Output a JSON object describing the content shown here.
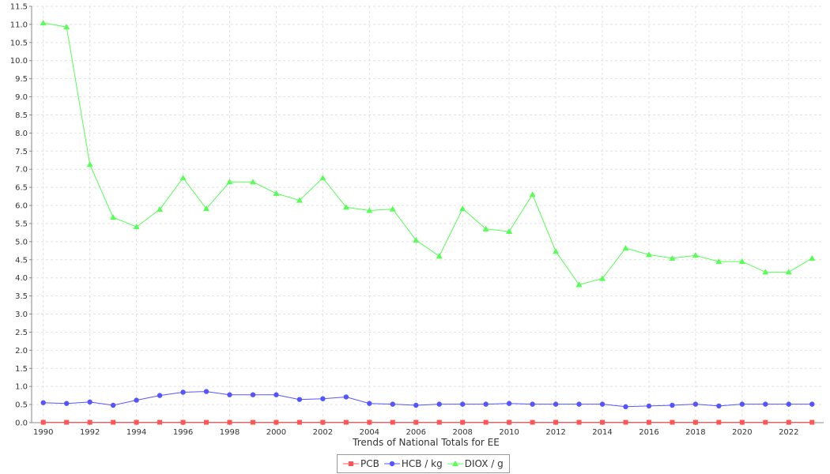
{
  "chart_data": {
    "type": "line",
    "title": "",
    "xlabel": "Trends of National Totals for EE",
    "ylabel": "",
    "x": [
      1990,
      1991,
      1992,
      1993,
      1994,
      1995,
      1996,
      1997,
      1998,
      1999,
      2000,
      2001,
      2002,
      2003,
      2004,
      2005,
      2006,
      2007,
      2008,
      2009,
      2010,
      2011,
      2012,
      2013,
      2014,
      2015,
      2016,
      2017,
      2018,
      2019,
      2020,
      2021,
      2022,
      2023
    ],
    "x_ticks": [
      "1990",
      "1992",
      "1994",
      "1996",
      "1998",
      "2000",
      "2002",
      "2004",
      "2006",
      "2008",
      "2010",
      "2012",
      "2014",
      "2016",
      "2018",
      "2020",
      "2022"
    ],
    "ylim": [
      0,
      11.5
    ],
    "y_ticks": [
      "0.0",
      "0.5",
      "1.0",
      "1.5",
      "2.0",
      "2.5",
      "3.0",
      "3.5",
      "4.0",
      "4.5",
      "5.0",
      "5.5",
      "6.0",
      "6.5",
      "7.0",
      "7.5",
      "8.0",
      "8.5",
      "9.0",
      "9.5",
      "10.0",
      "10.5",
      "11.0",
      "11.5"
    ],
    "grid": true,
    "legend_position": "bottom",
    "series": [
      {
        "name": "PCB",
        "color": "#ff5555",
        "marker": "square",
        "values": [
          0.01,
          0.01,
          0.01,
          0.01,
          0.01,
          0.01,
          0.01,
          0.01,
          0.01,
          0.01,
          0.01,
          0.01,
          0.01,
          0.01,
          0.01,
          0.01,
          0.01,
          0.01,
          0.01,
          0.01,
          0.01,
          0.01,
          0.01,
          0.01,
          0.01,
          0.01,
          0.01,
          0.01,
          0.01,
          0.01,
          0.01,
          0.01,
          0.01,
          0.01
        ]
      },
      {
        "name": "HCB / kg",
        "color": "#5555ff",
        "marker": "circle",
        "values": [
          0.55,
          0.53,
          0.57,
          0.48,
          0.62,
          0.75,
          0.84,
          0.86,
          0.77,
          0.77,
          0.77,
          0.64,
          0.66,
          0.71,
          0.53,
          0.51,
          0.48,
          0.51,
          0.51,
          0.51,
          0.53,
          0.51,
          0.51,
          0.51,
          0.51,
          0.44,
          0.46,
          0.48,
          0.51,
          0.46,
          0.51,
          0.51,
          0.51,
          0.51
        ]
      },
      {
        "name": "DIOX / g",
        "color": "#55ff55",
        "marker": "triangle",
        "values": [
          11.04,
          10.93,
          7.13,
          5.67,
          5.41,
          5.89,
          6.76,
          5.91,
          6.65,
          6.65,
          6.33,
          6.14,
          6.76,
          5.95,
          5.86,
          5.9,
          5.04,
          4.6,
          5.91,
          5.35,
          5.28,
          6.3,
          4.73,
          3.81,
          3.98,
          4.82,
          4.64,
          4.54,
          4.62,
          4.45,
          4.45,
          4.16,
          4.16,
          4.54
        ]
      }
    ]
  }
}
